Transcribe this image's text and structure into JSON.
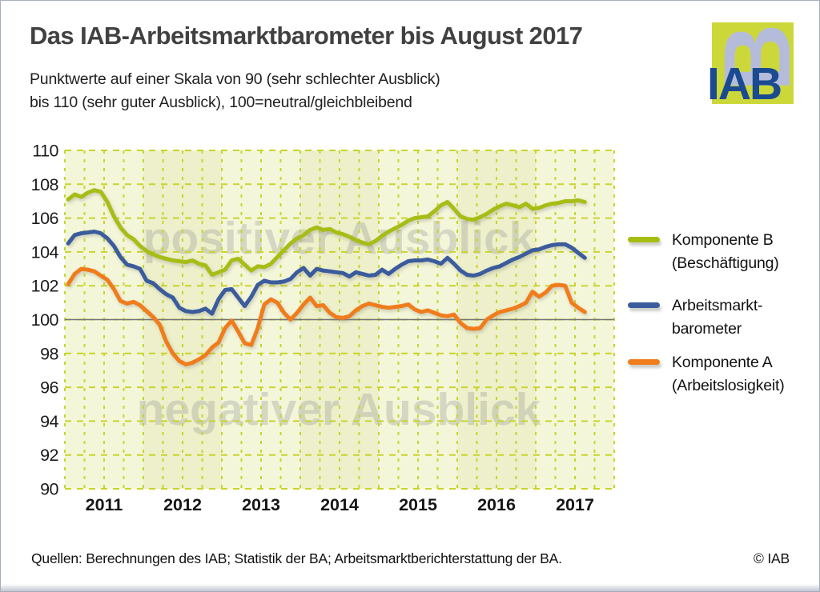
{
  "header": {
    "title": "Das IAB-Arbeitsmarktbarometer bis August 2017",
    "subtitle_line1": "Punktwerte auf einer Skala von 90 (sehr schlechter Ausblick)",
    "subtitle_line2": "bis 110 (sehr guter Ausblick), 100=neutral/gleichbleibend"
  },
  "logo": {
    "letter_b": "B",
    "text": "IAB",
    "bg_color": "#ccd83a",
    "b_color": "#b5bbdb",
    "text_color": "#1b4a91"
  },
  "legend": [
    {
      "line1": "Komponente B",
      "line2": "(Beschäftigung)",
      "color": "#a7bd12"
    },
    {
      "line1": "Arbeitsmarkt-",
      "line2": "barometer",
      "color": "#3a5c9c"
    },
    {
      "line1": "Komponente A",
      "line2": "(Arbeitslosigkeit)",
      "color": "#f07c1b"
    }
  ],
  "footer": {
    "sources": "Quellen: Berechnungen des IAB; Statistik der BA; Arbeitsmarktberichterstattung der BA.",
    "copyright": "© IAB"
  },
  "chart_data": {
    "type": "line",
    "title": "Das IAB-Arbeitsmarktbarometer bis August 2017",
    "x_unit": "month",
    "x_start": "2011-01",
    "x_end": "2017-08",
    "x_tick_labels": [
      "2011",
      "2012",
      "2013",
      "2014",
      "2015",
      "2016",
      "2017"
    ],
    "y_tick_labels": [
      "110",
      "108",
      "106",
      "104",
      "102",
      "100",
      "98",
      "96",
      "94",
      "92",
      "90"
    ],
    "ylim": [
      90,
      110
    ],
    "ytick_step": 2,
    "baseline": 100,
    "grid": {
      "vertical": "quarterly-dashed",
      "horizontal": "every-2-points-dashed",
      "color": "#c9d42b"
    },
    "plot_bands": {
      "light": "#f4f6da",
      "dark": "#edf0ca"
    },
    "watermark_positive": "positiver Ausblick",
    "watermark_negative": "negativer Ausblick",
    "watermark_color": "#a9ada1",
    "baseline_color": "#737476",
    "series": [
      {
        "name": "Komponente B (Beschäftigung)",
        "color": "#a7bd12",
        "values": [
          107.1,
          107.4,
          107.25,
          107.5,
          107.65,
          107.55,
          106.95,
          106.1,
          105.45,
          105.0,
          104.75,
          104.35,
          104.05,
          103.85,
          103.7,
          103.6,
          103.5,
          103.45,
          103.4,
          103.5,
          103.3,
          103.2,
          102.65,
          102.8,
          102.95,
          103.5,
          103.6,
          103.25,
          102.9,
          103.15,
          103.1,
          103.3,
          103.7,
          104.1,
          104.5,
          104.8,
          105.0,
          105.3,
          105.45,
          105.3,
          105.35,
          105.15,
          105.05,
          104.9,
          104.7,
          104.55,
          104.45,
          104.65,
          104.95,
          105.2,
          105.4,
          105.6,
          105.85,
          106.0,
          106.05,
          106.1,
          106.4,
          106.75,
          106.95,
          106.55,
          106.1,
          105.95,
          105.9,
          106.05,
          106.25,
          106.5,
          106.7,
          106.85,
          106.75,
          106.65,
          106.85,
          106.55,
          106.6,
          106.75,
          106.85,
          106.9,
          107.0,
          107.0,
          107.05,
          106.95
        ]
      },
      {
        "name": "Arbeitsmarktbarometer",
        "color": "#3a5c9c",
        "values": [
          104.5,
          105.0,
          105.1,
          105.15,
          105.2,
          105.1,
          104.8,
          104.35,
          103.7,
          103.25,
          103.15,
          103.0,
          102.3,
          102.15,
          101.8,
          101.5,
          101.3,
          100.7,
          100.5,
          100.45,
          100.5,
          100.65,
          100.35,
          101.2,
          101.75,
          101.8,
          101.3,
          100.8,
          101.35,
          102.05,
          102.3,
          102.2,
          102.2,
          102.25,
          102.4,
          102.8,
          103.05,
          102.6,
          103.0,
          102.9,
          102.85,
          102.8,
          102.75,
          102.55,
          102.8,
          102.7,
          102.6,
          102.65,
          102.95,
          102.7,
          103.0,
          103.25,
          103.45,
          103.5,
          103.5,
          103.55,
          103.45,
          103.3,
          103.65,
          103.3,
          102.9,
          102.65,
          102.6,
          102.7,
          102.9,
          103.05,
          103.15,
          103.35,
          103.55,
          103.7,
          103.9,
          104.1,
          104.15,
          104.3,
          104.4,
          104.45,
          104.45,
          104.25,
          103.95,
          103.65
        ]
      },
      {
        "name": "Komponente A (Arbeitslosigkeit)",
        "color": "#f07c1b",
        "values": [
          102.1,
          102.7,
          103.0,
          102.95,
          102.85,
          102.6,
          102.35,
          101.8,
          101.1,
          100.95,
          101.05,
          100.85,
          100.5,
          100.15,
          99.7,
          98.7,
          98.0,
          97.55,
          97.35,
          97.45,
          97.65,
          97.9,
          98.35,
          98.65,
          99.5,
          99.95,
          99.3,
          98.6,
          98.5,
          99.5,
          100.9,
          101.2,
          101.0,
          100.4,
          100.0,
          100.4,
          100.9,
          101.3,
          100.8,
          100.85,
          100.4,
          100.15,
          100.1,
          100.2,
          100.55,
          100.8,
          100.95,
          100.85,
          100.75,
          100.7,
          100.75,
          100.8,
          100.9,
          100.6,
          100.45,
          100.55,
          100.4,
          100.25,
          100.2,
          100.3,
          99.8,
          99.5,
          99.45,
          99.5,
          100.0,
          100.25,
          100.45,
          100.55,
          100.65,
          100.8,
          101.0,
          101.65,
          101.35,
          101.6,
          102.0,
          102.05,
          102.0,
          101.0,
          100.7,
          100.45
        ]
      }
    ]
  }
}
